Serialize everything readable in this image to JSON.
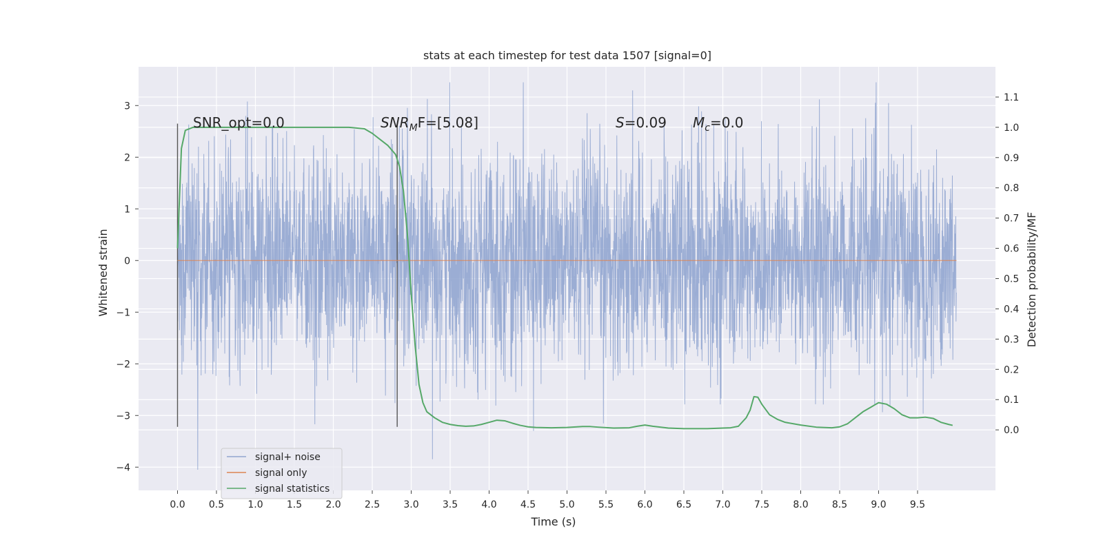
{
  "chart_data": {
    "type": "line",
    "title": "stats at each timestep for test data 1507 [signal=0]",
    "xlabel": "Time (s)",
    "ylabel": "Whitened strain",
    "y2label": "Detection probability/MF",
    "xlim": [
      -0.5,
      10.5
    ],
    "ylim": [
      -4.45,
      3.75
    ],
    "y2lim": [
      -0.2,
      1.2
    ],
    "x_ticks": [
      "0.0",
      "0.5",
      "1.0",
      "1.5",
      "2.0",
      "2.5",
      "3.0",
      "3.5",
      "4.0",
      "4.5",
      "5.0",
      "5.5",
      "6.0",
      "6.5",
      "7.0",
      "7.5",
      "8.0",
      "8.5",
      "9.0",
      "9.5"
    ],
    "y_ticks": [
      "3",
      "2",
      "1",
      "0",
      "−1",
      "−2",
      "−3",
      "−4"
    ],
    "y2_ticks": [
      "1.1",
      "1.0",
      "0.9",
      "0.8",
      "0.7",
      "0.6",
      "0.5",
      "0.4",
      "0.3",
      "0.2",
      "0.1",
      "0.0"
    ],
    "grid": true,
    "legend_position": "lower-left",
    "noise_band": {
      "x_range": [
        0.0,
        10.0
      ],
      "typical_amplitude": 1.5,
      "peak_amplitude": 3.45,
      "min_value": -4.05
    },
    "vertical_markers": [
      {
        "x": 0.0,
        "y_range": [
          -3.22,
          2.65
        ]
      },
      {
        "x": 2.82,
        "y_range": [
          -3.22,
          2.65
        ]
      }
    ],
    "annotations": {
      "snr_opt": "SNR_opt=0.0",
      "snr_mf_prefix": "SNR",
      "snr_mf_sub": "M",
      "snr_mf_suffix": "F=[5.08]",
      "s_prefix": "S",
      "s_suffix": "=0.09",
      "mc_prefix": "M",
      "mc_sub": "c",
      "mc_suffix": "=0.0"
    },
    "series": [
      {
        "name": "signal+ noise",
        "color": "#92a6d0",
        "axis": "left"
      },
      {
        "name": "signal only",
        "color": "#dd8452",
        "axis": "left",
        "x": [
          0.0,
          10.0
        ],
        "y": [
          0.0,
          0.0
        ]
      },
      {
        "name": "signal statistics",
        "color": "#55a868",
        "axis": "right",
        "x": [
          0.0,
          0.05,
          0.1,
          0.15,
          0.2,
          0.3,
          0.5,
          1.0,
          1.5,
          2.0,
          2.2,
          2.4,
          2.5,
          2.6,
          2.7,
          2.8,
          2.85,
          2.9,
          2.95,
          3.0,
          3.05,
          3.1,
          3.15,
          3.2,
          3.3,
          3.4,
          3.5,
          3.6,
          3.7,
          3.8,
          3.9,
          4.0,
          4.1,
          4.2,
          4.3,
          4.4,
          4.5,
          4.6,
          4.8,
          5.0,
          5.2,
          5.3,
          5.4,
          5.6,
          5.8,
          5.9,
          6.0,
          6.1,
          6.3,
          6.5,
          6.8,
          7.0,
          7.1,
          7.2,
          7.3,
          7.35,
          7.4,
          7.45,
          7.5,
          7.6,
          7.7,
          7.8,
          8.0,
          8.2,
          8.4,
          8.5,
          8.6,
          8.7,
          8.8,
          8.9,
          9.0,
          9.1,
          9.2,
          9.3,
          9.4,
          9.5,
          9.6,
          9.7,
          9.8,
          9.9,
          9.95
        ],
        "y": [
          0.6,
          0.93,
          0.99,
          0.995,
          1.0,
          1.0,
          1.0,
          1.0,
          1.0,
          1.0,
          1.0,
          0.995,
          0.98,
          0.96,
          0.94,
          0.91,
          0.87,
          0.79,
          0.65,
          0.45,
          0.28,
          0.15,
          0.09,
          0.06,
          0.04,
          0.025,
          0.018,
          0.014,
          0.012,
          0.013,
          0.018,
          0.025,
          0.032,
          0.03,
          0.022,
          0.015,
          0.01,
          0.008,
          0.007,
          0.008,
          0.011,
          0.011,
          0.009,
          0.006,
          0.007,
          0.012,
          0.016,
          0.012,
          0.006,
          0.004,
          0.004,
          0.006,
          0.007,
          0.012,
          0.04,
          0.065,
          0.11,
          0.108,
          0.085,
          0.05,
          0.035,
          0.025,
          0.016,
          0.009,
          0.007,
          0.01,
          0.02,
          0.04,
          0.06,
          0.075,
          0.09,
          0.085,
          0.07,
          0.05,
          0.04,
          0.04,
          0.042,
          0.038,
          0.025,
          0.018,
          0.015
        ]
      }
    ]
  }
}
